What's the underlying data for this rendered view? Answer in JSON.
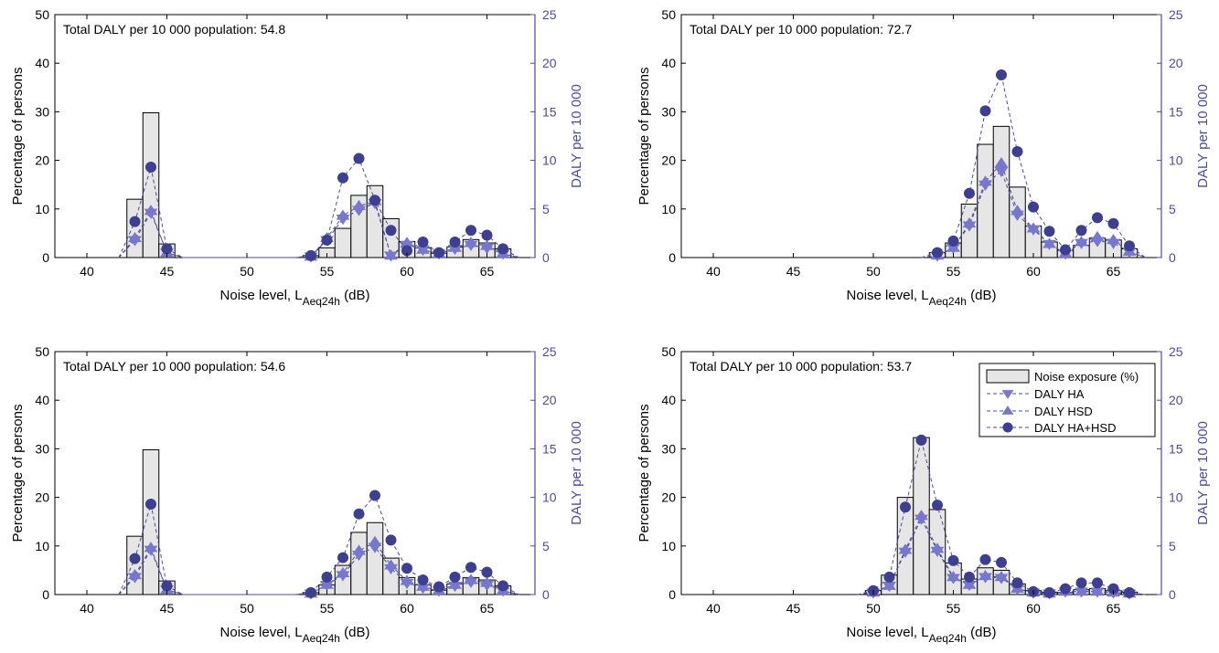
{
  "figure": {
    "colors": {
      "bar_fill": "#e6e6e6",
      "bar_stroke": "#000000",
      "series_line": "#4b4b9c",
      "dot_fill": "#3f3f8f",
      "triangle_fill": "#7777cc",
      "right_axis": "#4b4b9c"
    }
  },
  "chart_data": [
    {
      "type": "bar",
      "annotation": "Total DALY per 10 000 population: 54.8",
      "xlabel": "Noise level, L",
      "xlabel_sub": "Aeq24h",
      "xlabel_unit": " (dB)",
      "ylabel": "Percentage of persons",
      "y2label": "DALY per 10 000",
      "xlim": [
        38,
        68
      ],
      "ylim": [
        0,
        50
      ],
      "y2lim": [
        0,
        25
      ],
      "xticks": [
        40,
        45,
        50,
        55,
        60,
        65
      ],
      "yticks": [
        0,
        10,
        20,
        30,
        40,
        50
      ],
      "y2ticks": [
        0,
        5,
        10,
        15,
        20,
        25
      ],
      "grid": false,
      "legend": false,
      "bars": {
        "name": "Noise exposure (%)",
        "x": [
          43,
          44,
          45,
          54,
          55,
          56,
          57,
          58,
          59,
          60,
          61,
          62,
          63,
          64,
          65,
          66
        ],
        "values": [
          12,
          29.8,
          2.8,
          0.4,
          2,
          6,
          12.8,
          14.8,
          8,
          3.3,
          2,
          0.9,
          2.2,
          3.7,
          3,
          1.8
        ]
      },
      "series": [
        {
          "name": "DALY HA",
          "marker": "triangle-down",
          "x": [
            42,
            43,
            44,
            45,
            46,
            53,
            54,
            55,
            56,
            57,
            58,
            59,
            60,
            61,
            62,
            63,
            64,
            65,
            66,
            67
          ],
          "values": [
            0,
            1.8,
            4.6,
            0.5,
            0,
            0,
            0.1,
            1.8,
            4,
            4.9,
            5.6,
            0.2,
            1.3,
            0.8,
            0.4,
            0.9,
            1.3,
            1,
            0.4,
            0
          ]
        },
        {
          "name": "DALY HSD",
          "marker": "triangle-up",
          "x": [
            42,
            43,
            44,
            45,
            46,
            53,
            54,
            55,
            56,
            57,
            58,
            59,
            60,
            61,
            62,
            63,
            64,
            65,
            66,
            67
          ],
          "values": [
            0,
            2,
            4.8,
            0.5,
            0,
            0,
            0.1,
            2,
            4.3,
            5.3,
            5.8,
            0.2,
            1.5,
            0.8,
            0.4,
            1,
            1.5,
            1.2,
            0.4,
            0
          ]
        },
        {
          "name": "DALY HA+HSD",
          "marker": "circle",
          "x": [
            42,
            43,
            44,
            45,
            46,
            53,
            54,
            55,
            56,
            57,
            58,
            59,
            60,
            61,
            62,
            63,
            64,
            65,
            66,
            67
          ],
          "values": [
            0,
            3.7,
            9.3,
            0.9,
            0,
            0,
            0.2,
            1.8,
            8.2,
            10.2,
            5.9,
            2.8,
            0.7,
            1.6,
            0.5,
            1.6,
            2.8,
            2.3,
            0.9,
            0
          ]
        }
      ]
    },
    {
      "type": "bar",
      "annotation": "Total DALY per 10 000 population: 72.7",
      "xlabel": "Noise level, L",
      "xlabel_sub": "Aeq24h",
      "xlabel_unit": " (dB)",
      "ylabel": "Percentage of persons",
      "y2label": "DALY per 10 000",
      "xlim": [
        38,
        68
      ],
      "ylim": [
        0,
        50
      ],
      "y2lim": [
        0,
        25
      ],
      "xticks": [
        40,
        45,
        50,
        55,
        60,
        65
      ],
      "yticks": [
        0,
        10,
        20,
        30,
        40,
        50
      ],
      "y2ticks": [
        0,
        5,
        10,
        15,
        20,
        25
      ],
      "grid": false,
      "legend": false,
      "bars": {
        "name": "Noise exposure (%)",
        "x": [
          54,
          55,
          56,
          57,
          58,
          59,
          60,
          61,
          62,
          63,
          64,
          65,
          66
        ],
        "values": [
          1,
          3,
          11,
          23.3,
          27,
          14.5,
          6.5,
          3.2,
          1.5,
          2.5,
          4,
          3.6,
          1.8
        ]
      },
      "series": [
        {
          "name": "DALY HA",
          "marker": "triangle-down",
          "x": [
            53,
            54,
            55,
            56,
            57,
            58,
            59,
            60,
            61,
            62,
            63,
            64,
            65,
            66,
            67
          ],
          "values": [
            0,
            0.2,
            1,
            3.3,
            7.5,
            8.9,
            4.4,
            2.9,
            1.4,
            0.4,
            1.5,
            1.7,
            1.5,
            0.6,
            0
          ]
        },
        {
          "name": "DALY HSD",
          "marker": "triangle-up",
          "x": [
            53,
            54,
            55,
            56,
            57,
            58,
            59,
            60,
            61,
            62,
            63,
            64,
            65,
            66,
            67
          ],
          "values": [
            0,
            0.2,
            1,
            3.5,
            7.8,
            9.7,
            4.8,
            3,
            1.4,
            0.4,
            1.6,
            2.1,
            1.8,
            0.6,
            0
          ]
        },
        {
          "name": "DALY HA+HSD",
          "marker": "circle",
          "x": [
            53,
            54,
            55,
            56,
            57,
            58,
            59,
            60,
            61,
            62,
            63,
            64,
            65,
            66,
            67
          ],
          "values": [
            0,
            0.5,
            1.7,
            6.6,
            15.1,
            18.8,
            10.9,
            5.2,
            2.7,
            0.8,
            2.8,
            4.1,
            3.5,
            1.2,
            0
          ]
        }
      ]
    },
    {
      "type": "bar",
      "annotation": "Total DALY per 10 000 population: 54.6",
      "xlabel": "Noise level, L",
      "xlabel_sub": "Aeq24h",
      "xlabel_unit": " (dB)",
      "ylabel": "Percentage of persons",
      "y2label": "DALY per 10 000",
      "xlim": [
        38,
        68
      ],
      "ylim": [
        0,
        50
      ],
      "y2lim": [
        0,
        25
      ],
      "xticks": [
        40,
        45,
        50,
        55,
        60,
        65
      ],
      "yticks": [
        0,
        10,
        20,
        30,
        40,
        50
      ],
      "y2ticks": [
        0,
        5,
        10,
        15,
        20,
        25
      ],
      "grid": false,
      "legend": false,
      "bars": {
        "name": "Noise exposure (%)",
        "x": [
          43,
          44,
          45,
          54,
          55,
          56,
          57,
          58,
          59,
          60,
          61,
          62,
          63,
          64,
          65,
          66
        ],
        "values": [
          12,
          29.8,
          2.8,
          0.4,
          2,
          6,
          12.8,
          14.8,
          7.5,
          3.5,
          2,
          0.9,
          2.2,
          3.5,
          3,
          1.8
        ]
      },
      "series": [
        {
          "name": "DALY HA",
          "marker": "triangle-down",
          "x": [
            42,
            43,
            44,
            45,
            46,
            53,
            54,
            55,
            56,
            57,
            58,
            59,
            60,
            61,
            62,
            63,
            64,
            65,
            66,
            67
          ],
          "values": [
            0,
            1.8,
            4.6,
            0.5,
            0,
            0,
            0.1,
            1,
            2,
            4.1,
            4.9,
            2.7,
            1.2,
            0.7,
            0.4,
            0.9,
            1.3,
            1,
            0.4,
            0
          ]
        },
        {
          "name": "DALY HSD",
          "marker": "triangle-up",
          "x": [
            42,
            43,
            44,
            45,
            46,
            53,
            54,
            55,
            56,
            57,
            58,
            59,
            60,
            61,
            62,
            63,
            64,
            65,
            66,
            67
          ],
          "values": [
            0,
            2,
            4.8,
            0.5,
            0,
            0,
            0.1,
            1,
            2.2,
            4.5,
            5.4,
            3,
            1.4,
            0.8,
            0.4,
            1,
            1.5,
            1.2,
            0.4,
            0
          ]
        },
        {
          "name": "DALY HA+HSD",
          "marker": "circle",
          "x": [
            42,
            43,
            44,
            45,
            46,
            53,
            54,
            55,
            56,
            57,
            58,
            59,
            60,
            61,
            62,
            63,
            64,
            65,
            66,
            67
          ],
          "values": [
            0,
            3.7,
            9.3,
            0.9,
            0,
            0,
            0.2,
            1.8,
            3.8,
            8.3,
            10.2,
            5.6,
            2.7,
            1.5,
            0.8,
            1.8,
            2.8,
            2.3,
            0.9,
            0
          ]
        }
      ]
    },
    {
      "type": "bar",
      "annotation": "Total DALY per 10 000 population: 53.7",
      "xlabel": "Noise level, L",
      "xlabel_sub": "Aeq24h",
      "xlabel_unit": " (dB)",
      "ylabel": "Percentage of persons",
      "y2label": "DALY per 10 000",
      "xlim": [
        38,
        68
      ],
      "ylim": [
        0,
        50
      ],
      "y2lim": [
        0,
        25
      ],
      "xticks": [
        40,
        45,
        50,
        55,
        60,
        65
      ],
      "yticks": [
        0,
        10,
        20,
        30,
        40,
        50
      ],
      "y2ticks": [
        0,
        5,
        10,
        15,
        20,
        25
      ],
      "grid": false,
      "legend": true,
      "legend_position": "top-right",
      "bars": {
        "name": "Noise exposure (%)",
        "x": [
          50,
          51,
          52,
          53,
          54,
          55,
          56,
          57,
          58,
          59,
          60,
          61,
          62,
          63,
          64,
          65,
          66
        ],
        "values": [
          0.8,
          4,
          20,
          32.3,
          17.5,
          6.5,
          3.2,
          5.5,
          5,
          2.2,
          0.8,
          0.5,
          0.4,
          1,
          1.2,
          0.8,
          0.5
        ]
      },
      "series": [
        {
          "name": "DALY HA",
          "marker": "triangle-down",
          "x": [
            49,
            50,
            51,
            52,
            53,
            54,
            55,
            56,
            57,
            58,
            59,
            60,
            61,
            62,
            63,
            64,
            65,
            66,
            67
          ],
          "values": [
            0,
            0.2,
            0.9,
            4.4,
            7.8,
            4.5,
            1.7,
            1,
            1.8,
            1.7,
            0.6,
            0.2,
            0.1,
            0.3,
            0.3,
            0.3,
            0.2,
            0.1,
            0
          ]
        },
        {
          "name": "DALY HSD",
          "marker": "triangle-up",
          "x": [
            49,
            50,
            51,
            52,
            53,
            54,
            55,
            56,
            57,
            58,
            59,
            60,
            61,
            62,
            63,
            64,
            65,
            66,
            67
          ],
          "values": [
            0,
            0.2,
            0.9,
            4.6,
            8.1,
            4.7,
            1.8,
            1,
            1.9,
            1.8,
            0.6,
            0.2,
            0.1,
            0.3,
            0.3,
            0.3,
            0.2,
            0.1,
            0
          ]
        },
        {
          "name": "DALY HA+HSD",
          "marker": "circle",
          "x": [
            49,
            50,
            51,
            52,
            53,
            54,
            55,
            56,
            57,
            58,
            59,
            60,
            61,
            62,
            63,
            64,
            65,
            66,
            67
          ],
          "values": [
            0,
            0.4,
            1.8,
            9,
            15.9,
            9.2,
            3.5,
            1.8,
            3.6,
            3.3,
            1.2,
            0.3,
            0.2,
            0.6,
            1.2,
            1.2,
            0.6,
            0.2,
            0
          ]
        }
      ]
    }
  ]
}
